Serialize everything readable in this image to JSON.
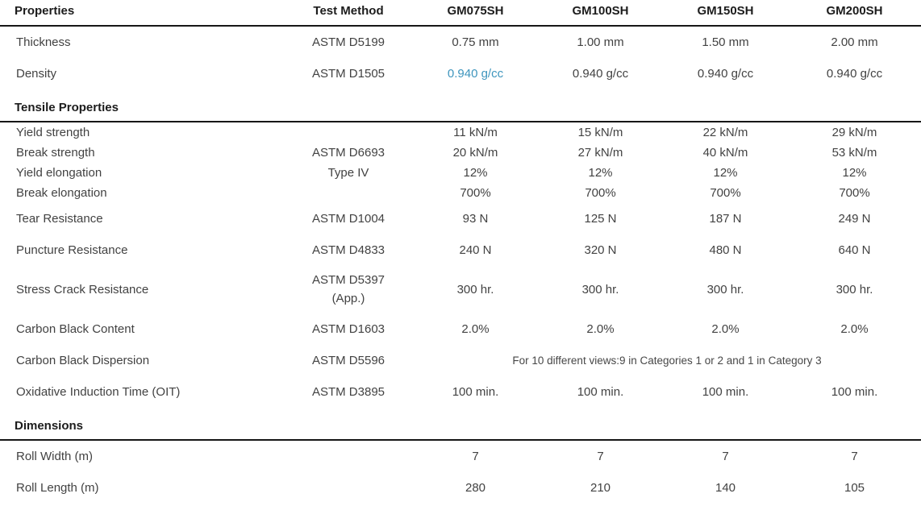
{
  "colors": {
    "link": "#3e95bd",
    "body_text": "#424242",
    "heading_text": "#1c1c1c",
    "rule": "#161616"
  },
  "header": {
    "properties_label": "Properties",
    "test_method_label": "Test Method",
    "products": [
      "GM075SH",
      "GM100SH",
      "GM150SH",
      "GM200SH"
    ]
  },
  "sections": {
    "tensile_title": "Tensile Properties",
    "dimensions_title": "Dimensions"
  },
  "rows": {
    "thickness": {
      "label": "Thickness",
      "method": "ASTM D5199",
      "values": [
        "0.75 mm",
        "1.00 mm",
        "1.50 mm",
        "2.00 mm"
      ]
    },
    "density": {
      "label": "Density",
      "method": "ASTM D1505",
      "values": [
        "0.940 g/cc",
        "0.940 g/cc",
        "0.940 g/cc",
        "0.940 g/cc"
      ]
    },
    "yield_strength": {
      "label": "Yield strength",
      "method": "",
      "values": [
        "11 kN/m",
        "15 kN/m",
        "22 kN/m",
        "29 kN/m"
      ]
    },
    "break_strength": {
      "label": "Break strength",
      "method": "ASTM D6693",
      "values": [
        "20 kN/m",
        "27 kN/m",
        "40 kN/m",
        "53 kN/m"
      ]
    },
    "yield_elongation": {
      "label": "Yield elongation",
      "method": "Type IV",
      "values": [
        "12%",
        "12%",
        "12%",
        "12%"
      ]
    },
    "break_elongation": {
      "label": "Break elongation",
      "method": "",
      "values": [
        "700%",
        "700%",
        "700%",
        "700%"
      ]
    },
    "tear_resistance": {
      "label": "Tear Resistance",
      "method": "ASTM D1004",
      "values": [
        "93 N",
        "125 N",
        "187 N",
        "249 N"
      ]
    },
    "puncture_resistance": {
      "label": "Puncture Resistance",
      "method": "ASTM D4833",
      "values": [
        "240 N",
        "320 N",
        "480 N",
        "640 N"
      ]
    },
    "stress_crack": {
      "label": "Stress Crack Resistance",
      "method_line1": "ASTM D5397",
      "method_line2": "(App.)",
      "values": [
        "300 hr.",
        "300 hr.",
        "300 hr.",
        "300 hr."
      ]
    },
    "carbon_black_content": {
      "label": "Carbon Black Content",
      "method": "ASTM D1603",
      "values": [
        "2.0%",
        "2.0%",
        "2.0%",
        "2.0%"
      ]
    },
    "carbon_black_dispersion": {
      "label": "Carbon Black Dispersion",
      "method": "ASTM D5596",
      "note": "For 10 different views:9 in Categories 1 or 2 and 1 in Category 3"
    },
    "oit": {
      "label": "Oxidative Induction Time (OIT)",
      "method": "ASTM D3895",
      "values": [
        "100 min.",
        "100 min.",
        "100 min.",
        "100 min."
      ]
    },
    "roll_width": {
      "label": "Roll Width (m)",
      "method": "",
      "values": [
        "7",
        "7",
        "7",
        "7"
      ]
    },
    "roll_length": {
      "label": "Roll Length (m)",
      "method": "",
      "values": [
        "280",
        "210",
        "140",
        "105"
      ]
    }
  }
}
